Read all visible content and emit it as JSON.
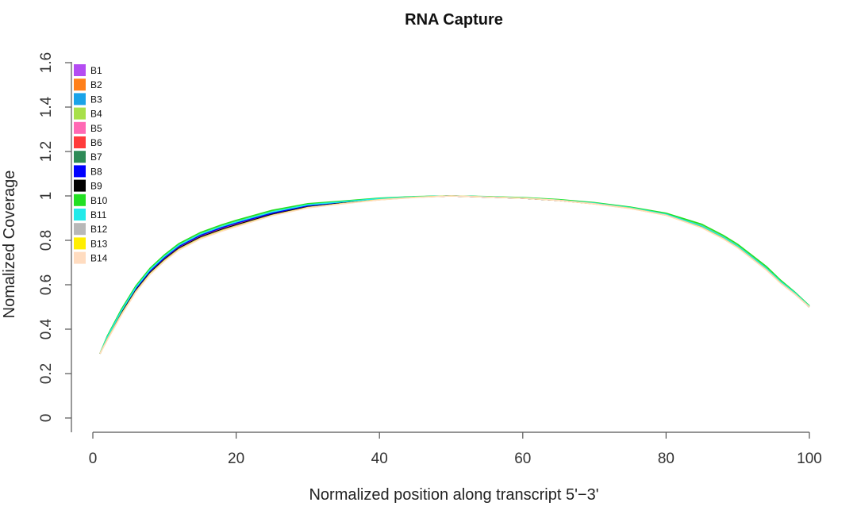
{
  "chart_data": {
    "type": "line",
    "title": "RNA Capture",
    "xlabel": "Normalized position along transcript 5'−3'",
    "ylabel": "Nomalized Coverage",
    "xlim": [
      0,
      100
    ],
    "ylim": [
      0,
      1.6
    ],
    "xticks": [
      "0",
      "20",
      "40",
      "60",
      "80",
      "100"
    ],
    "yticks": [
      "0",
      "0.2",
      "0.4",
      "0.6",
      "0.8",
      "1",
      "1.2",
      "1.4",
      "1.6"
    ],
    "legend_position": "top-left",
    "x": [
      1,
      2,
      4,
      6,
      8,
      10,
      12,
      15,
      18,
      20,
      25,
      30,
      35,
      40,
      45,
      50,
      55,
      60,
      65,
      70,
      75,
      80,
      85,
      88,
      90,
      92,
      94,
      96,
      98,
      100
    ],
    "series": [
      {
        "name": "B1",
        "color": "#b44cf2",
        "values": [
          0.29,
          0.36,
          0.48,
          0.58,
          0.66,
          0.72,
          0.77,
          0.82,
          0.855,
          0.875,
          0.92,
          0.955,
          0.97,
          0.985,
          0.995,
          1.0,
          0.995,
          0.99,
          0.98,
          0.965,
          0.945,
          0.915,
          0.86,
          0.81,
          0.77,
          0.72,
          0.67,
          0.61,
          0.56,
          0.5
        ]
      },
      {
        "name": "B2",
        "color": "#ff7f1a",
        "values": [
          0.29,
          0.355,
          0.47,
          0.57,
          0.65,
          0.71,
          0.76,
          0.81,
          0.845,
          0.865,
          0.915,
          0.95,
          0.968,
          0.984,
          0.994,
          1.0,
          0.995,
          0.99,
          0.98,
          0.965,
          0.944,
          0.914,
          0.858,
          0.808,
          0.768,
          0.718,
          0.668,
          0.608,
          0.558,
          0.5
        ]
      },
      {
        "name": "B3",
        "color": "#1aa3e8",
        "values": [
          0.29,
          0.36,
          0.48,
          0.585,
          0.665,
          0.725,
          0.775,
          0.825,
          0.86,
          0.88,
          0.925,
          0.958,
          0.972,
          0.987,
          0.996,
          1.0,
          0.996,
          0.99,
          0.98,
          0.966,
          0.946,
          0.916,
          0.862,
          0.812,
          0.772,
          0.722,
          0.672,
          0.612,
          0.562,
          0.5
        ]
      },
      {
        "name": "B4",
        "color": "#a8e04a",
        "values": [
          0.29,
          0.365,
          0.485,
          0.59,
          0.67,
          0.73,
          0.78,
          0.83,
          0.865,
          0.885,
          0.93,
          0.962,
          0.975,
          0.988,
          0.996,
          1.0,
          0.996,
          0.992,
          0.982,
          0.968,
          0.948,
          0.918,
          0.866,
          0.816,
          0.776,
          0.726,
          0.676,
          0.616,
          0.564,
          0.505
        ]
      },
      {
        "name": "B5",
        "color": "#ff69b4",
        "values": [
          0.29,
          0.358,
          0.475,
          0.578,
          0.658,
          0.718,
          0.768,
          0.818,
          0.852,
          0.872,
          0.918,
          0.952,
          0.969,
          0.985,
          0.995,
          1.0,
          0.995,
          0.99,
          0.98,
          0.965,
          0.945,
          0.915,
          0.86,
          0.81,
          0.77,
          0.72,
          0.67,
          0.61,
          0.56,
          0.5
        ]
      },
      {
        "name": "B6",
        "color": "#ff3b3b",
        "values": [
          0.29,
          0.357,
          0.473,
          0.575,
          0.655,
          0.715,
          0.765,
          0.815,
          0.85,
          0.87,
          0.917,
          0.951,
          0.968,
          0.985,
          0.995,
          1.0,
          0.995,
          0.99,
          0.98,
          0.965,
          0.945,
          0.915,
          0.86,
          0.81,
          0.77,
          0.72,
          0.67,
          0.61,
          0.56,
          0.5
        ]
      },
      {
        "name": "B7",
        "color": "#2e8b57",
        "values": [
          0.29,
          0.362,
          0.482,
          0.586,
          0.666,
          0.726,
          0.776,
          0.826,
          0.861,
          0.881,
          0.926,
          0.958,
          0.972,
          0.987,
          0.996,
          1.0,
          0.996,
          0.991,
          0.981,
          0.967,
          0.947,
          0.917,
          0.864,
          0.814,
          0.774,
          0.724,
          0.674,
          0.614,
          0.562,
          0.5
        ]
      },
      {
        "name": "B8",
        "color": "#0000ff",
        "values": [
          0.29,
          0.36,
          0.478,
          0.582,
          0.662,
          0.722,
          0.772,
          0.822,
          0.857,
          0.877,
          0.922,
          0.956,
          0.971,
          0.986,
          0.995,
          1.0,
          0.995,
          0.99,
          0.98,
          0.966,
          0.946,
          0.916,
          0.862,
          0.812,
          0.772,
          0.722,
          0.672,
          0.612,
          0.561,
          0.5
        ]
      },
      {
        "name": "B9",
        "color": "#000000",
        "values": [
          0.29,
          0.356,
          0.472,
          0.574,
          0.654,
          0.714,
          0.764,
          0.814,
          0.849,
          0.869,
          0.916,
          0.95,
          0.968,
          0.984,
          0.995,
          1.0,
          0.995,
          0.99,
          0.98,
          0.965,
          0.945,
          0.915,
          0.86,
          0.81,
          0.77,
          0.72,
          0.67,
          0.61,
          0.56,
          0.5
        ]
      },
      {
        "name": "B10",
        "color": "#22e022",
        "values": [
          0.29,
          0.368,
          0.49,
          0.595,
          0.675,
          0.735,
          0.785,
          0.835,
          0.87,
          0.89,
          0.935,
          0.965,
          0.977,
          0.99,
          0.997,
          1.0,
          0.997,
          0.993,
          0.984,
          0.97,
          0.95,
          0.922,
          0.872,
          0.822,
          0.782,
          0.732,
          0.682,
          0.62,
          0.566,
          0.505
        ]
      },
      {
        "name": "B11",
        "color": "#22eaea",
        "values": [
          0.29,
          0.363,
          0.483,
          0.588,
          0.668,
          0.728,
          0.778,
          0.828,
          0.863,
          0.883,
          0.928,
          0.96,
          0.974,
          0.988,
          0.996,
          1.0,
          0.996,
          0.991,
          0.981,
          0.967,
          0.947,
          0.917,
          0.864,
          0.814,
          0.774,
          0.724,
          0.674,
          0.614,
          0.563,
          0.503
        ]
      },
      {
        "name": "B12",
        "color": "#b8b8b8",
        "values": [
          0.29,
          0.354,
          0.468,
          0.57,
          0.65,
          0.71,
          0.76,
          0.81,
          0.845,
          0.865,
          0.913,
          0.948,
          0.966,
          0.983,
          0.994,
          1.0,
          0.995,
          0.99,
          0.98,
          0.965,
          0.944,
          0.914,
          0.858,
          0.808,
          0.768,
          0.718,
          0.668,
          0.608,
          0.558,
          0.5
        ]
      },
      {
        "name": "B13",
        "color": "#ffee00",
        "values": [
          0.29,
          0.352,
          0.466,
          0.568,
          0.648,
          0.708,
          0.758,
          0.808,
          0.843,
          0.863,
          0.912,
          0.947,
          0.966,
          0.983,
          0.994,
          1.0,
          0.995,
          0.99,
          0.98,
          0.964,
          0.944,
          0.913,
          0.857,
          0.807,
          0.767,
          0.717,
          0.667,
          0.607,
          0.557,
          0.5
        ]
      },
      {
        "name": "B14",
        "color": "#ffdcc0",
        "values": [
          0.29,
          0.35,
          0.464,
          0.566,
          0.646,
          0.706,
          0.756,
          0.806,
          0.841,
          0.861,
          0.911,
          0.946,
          0.965,
          0.982,
          0.993,
          1.0,
          0.995,
          0.99,
          0.98,
          0.964,
          0.943,
          0.913,
          0.856,
          0.806,
          0.766,
          0.716,
          0.666,
          0.606,
          0.556,
          0.5
        ]
      }
    ]
  }
}
